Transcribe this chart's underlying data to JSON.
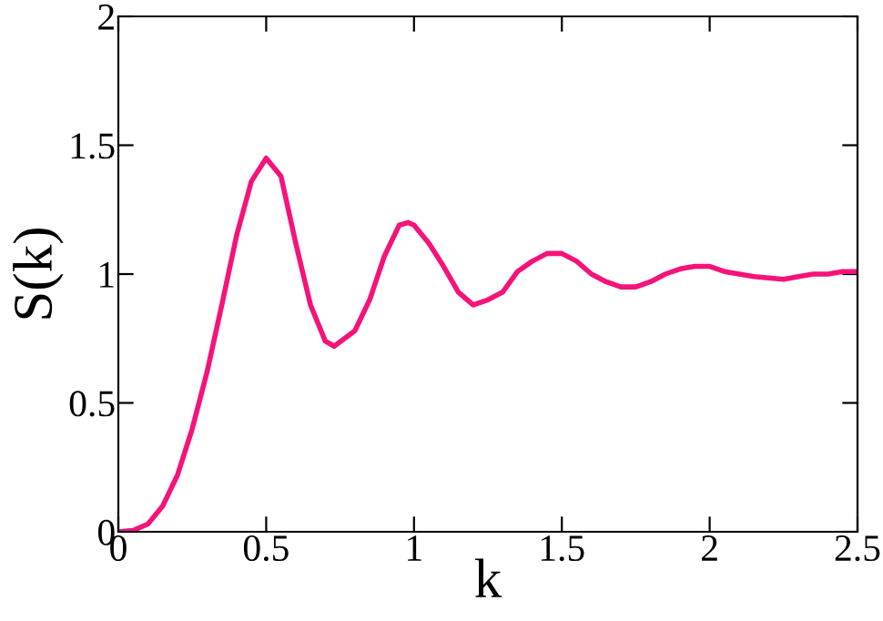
{
  "chart_data": {
    "type": "line",
    "xlabel": "k",
    "ylabel": "S(k)",
    "xlim": [
      0,
      2.5
    ],
    "ylim": [
      0,
      2
    ],
    "xticks": [
      0,
      0.5,
      1,
      1.5,
      2,
      2.5
    ],
    "yticks": [
      0,
      0.5,
      1,
      1.5,
      2
    ],
    "grid": false,
    "line_style": "solid",
    "marker": "none",
    "series": [
      {
        "color": "#f5137a",
        "x": [
          0,
          0.05,
          0.1,
          0.15,
          0.2,
          0.25,
          0.3,
          0.35,
          0.4,
          0.45,
          0.5,
          0.55,
          0.6,
          0.65,
          0.7,
          0.73,
          0.8,
          0.85,
          0.9,
          0.95,
          0.98,
          1.0,
          1.05,
          1.1,
          1.15,
          1.2,
          1.25,
          1.3,
          1.35,
          1.4,
          1.45,
          1.5,
          1.55,
          1.6,
          1.65,
          1.7,
          1.75,
          1.8,
          1.85,
          1.9,
          1.95,
          2.0,
          2.05,
          2.1,
          2.15,
          2.2,
          2.25,
          2.3,
          2.35,
          2.4,
          2.45,
          2.5
        ],
        "values": [
          0,
          0.005,
          0.03,
          0.1,
          0.22,
          0.4,
          0.62,
          0.88,
          1.15,
          1.36,
          1.45,
          1.38,
          1.12,
          0.88,
          0.74,
          0.72,
          0.78,
          0.9,
          1.07,
          1.19,
          1.2,
          1.19,
          1.12,
          1.03,
          0.93,
          0.88,
          0.9,
          0.93,
          1.01,
          1.05,
          1.08,
          1.08,
          1.05,
          1.0,
          0.97,
          0.95,
          0.95,
          0.97,
          1.0,
          1.02,
          1.03,
          1.03,
          1.01,
          1.0,
          0.99,
          0.985,
          0.98,
          0.99,
          1.0,
          1.0,
          1.01,
          1.01
        ]
      }
    ]
  }
}
